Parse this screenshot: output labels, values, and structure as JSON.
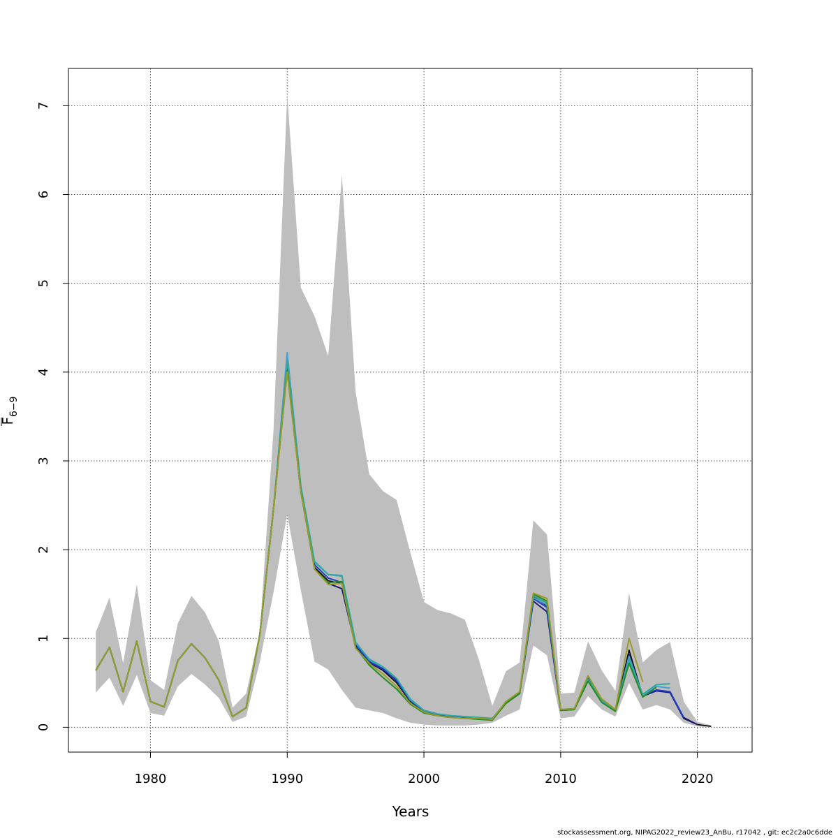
{
  "chart_data": {
    "type": "line",
    "xlabel": "Years",
    "ylabel_main": "F",
    "ylabel_sub": "6−9",
    "xlim": [
      1974,
      2024
    ],
    "ylim": [
      -0.28,
      7.42
    ],
    "xticks": [
      1980,
      1990,
      2000,
      2010,
      2020
    ],
    "yticks": [
      0,
      1,
      2,
      3,
      4,
      5,
      6,
      7
    ],
    "grid": true,
    "band": {
      "years": [
        1976,
        1977,
        1978,
        1979,
        1980,
        1981,
        1982,
        1983,
        1984,
        1985,
        1986,
        1987,
        1988,
        1989,
        1990,
        1991,
        1992,
        1993,
        1994,
        1995,
        1996,
        1997,
        1998,
        1999,
        2000,
        2001,
        2002,
        2003,
        2004,
        2005,
        2006,
        2007,
        2008,
        2009,
        2010,
        2011,
        2012,
        2013,
        2014,
        2015,
        2016,
        2017,
        2018,
        2019,
        2020,
        2021
      ],
      "upper": [
        1.07,
        1.46,
        0.72,
        1.61,
        0.53,
        0.42,
        1.17,
        1.48,
        1.29,
        0.97,
        0.22,
        0.38,
        1.08,
        3.35,
        7.13,
        4.95,
        4.63,
        4.18,
        6.22,
        3.78,
        2.85,
        2.66,
        2.56,
        1.97,
        1.41,
        1.32,
        1.28,
        1.21,
        0.77,
        0.24,
        0.63,
        0.73,
        2.33,
        2.17,
        0.38,
        0.39,
        0.97,
        0.64,
        0.41,
        1.51,
        0.73,
        0.87,
        0.96,
        0.29,
        0.06,
        0.02
      ],
      "lower": [
        0.39,
        0.56,
        0.24,
        0.59,
        0.16,
        0.13,
        0.46,
        0.6,
        0.48,
        0.33,
        0.06,
        0.12,
        0.74,
        1.52,
        2.4,
        1.54,
        0.74,
        0.65,
        0.42,
        0.22,
        0.19,
        0.16,
        0.1,
        0.05,
        0.03,
        0.02,
        0.02,
        0.02,
        0.03,
        0.05,
        0.13,
        0.2,
        0.92,
        0.81,
        0.1,
        0.12,
        0.35,
        0.2,
        0.12,
        0.5,
        0.2,
        0.25,
        0.2,
        0.05,
        0.01,
        0.0
      ]
    },
    "series": [
      {
        "color": "#000000",
        "x": [
          1976,
          1977,
          1978,
          1979,
          1980,
          1981,
          1982,
          1983,
          1984,
          1985,
          1986,
          1987,
          1988,
          1989,
          1990,
          1991,
          1992,
          1993,
          1994,
          1995,
          1996,
          1997,
          1998,
          1999,
          2000,
          2001,
          2002,
          2003,
          2004,
          2005,
          2006,
          2007,
          2008,
          2009,
          2010,
          2011,
          2012,
          2013,
          2014,
          2015,
          2016,
          2017,
          2018,
          2019,
          2020,
          2021
        ],
        "y": [
          0.64,
          0.9,
          0.4,
          0.97,
          0.29,
          0.23,
          0.75,
          0.94,
          0.78,
          0.53,
          0.12,
          0.22,
          1.05,
          2.46,
          4.1,
          2.68,
          1.8,
          1.65,
          1.62,
          0.92,
          0.73,
          0.64,
          0.5,
          0.29,
          0.18,
          0.14,
          0.12,
          0.11,
          0.1,
          0.09,
          0.27,
          0.38,
          1.47,
          1.37,
          0.2,
          0.2,
          0.55,
          0.3,
          0.19,
          0.87,
          0.35,
          0.41,
          0.4,
          0.11,
          0.03,
          0.01
        ]
      },
      {
        "color": "#191970",
        "x": [
          1976,
          1977,
          1978,
          1979,
          1980,
          1981,
          1982,
          1983,
          1984,
          1985,
          1986,
          1987,
          1988,
          1989,
          1990,
          1991,
          1992,
          1993,
          1994,
          1995,
          1996,
          1997,
          1998,
          1999,
          2000,
          2001,
          2002,
          2003,
          2004,
          2005,
          2006,
          2007,
          2008,
          2009,
          2010,
          2011,
          2012,
          2013,
          2014,
          2015,
          2016,
          2017,
          2018,
          2019,
          2020
        ],
        "y": [
          0.64,
          0.9,
          0.4,
          0.97,
          0.29,
          0.23,
          0.75,
          0.94,
          0.78,
          0.53,
          0.12,
          0.22,
          1.05,
          2.46,
          4.05,
          2.65,
          1.79,
          1.62,
          1.56,
          0.91,
          0.72,
          0.65,
          0.53,
          0.3,
          0.18,
          0.14,
          0.12,
          0.11,
          0.1,
          0.09,
          0.27,
          0.38,
          1.42,
          1.3,
          0.19,
          0.2,
          0.54,
          0.3,
          0.19,
          0.82,
          0.35,
          0.41,
          0.39,
          0.1,
          0.03
        ]
      },
      {
        "color": "#1e3cc8",
        "x": [
          1976,
          1977,
          1978,
          1979,
          1980,
          1981,
          1982,
          1983,
          1984,
          1985,
          1986,
          1987,
          1988,
          1989,
          1990,
          1991,
          1992,
          1993,
          1994,
          1995,
          1996,
          1997,
          1998,
          1999,
          2000,
          2001,
          2002,
          2003,
          2004,
          2005,
          2006,
          2007,
          2008,
          2009,
          2010,
          2011,
          2012,
          2013,
          2014,
          2015,
          2016,
          2017,
          2018,
          2019
        ],
        "y": [
          0.64,
          0.9,
          0.4,
          0.97,
          0.29,
          0.23,
          0.75,
          0.94,
          0.78,
          0.53,
          0.12,
          0.22,
          1.05,
          2.46,
          4.15,
          2.7,
          1.83,
          1.68,
          1.63,
          0.93,
          0.74,
          0.66,
          0.52,
          0.3,
          0.18,
          0.14,
          0.12,
          0.11,
          0.1,
          0.09,
          0.28,
          0.39,
          1.45,
          1.35,
          0.2,
          0.2,
          0.55,
          0.3,
          0.19,
          0.78,
          0.35,
          0.42,
          0.4,
          0.11
        ]
      },
      {
        "color": "#4aa0c8",
        "x": [
          1976,
          1977,
          1978,
          1979,
          1980,
          1981,
          1982,
          1983,
          1984,
          1985,
          1986,
          1987,
          1988,
          1989,
          1990,
          1991,
          1992,
          1993,
          1994,
          1995,
          1996,
          1997,
          1998,
          1999,
          2000,
          2001,
          2002,
          2003,
          2004,
          2005,
          2006,
          2007,
          2008,
          2009,
          2010,
          2011,
          2012,
          2013,
          2014,
          2015,
          2016,
          2017,
          2018
        ],
        "y": [
          0.64,
          0.9,
          0.4,
          0.97,
          0.29,
          0.23,
          0.75,
          0.94,
          0.78,
          0.53,
          0.12,
          0.22,
          1.05,
          2.46,
          4.22,
          2.72,
          1.86,
          1.72,
          1.7,
          0.95,
          0.77,
          0.68,
          0.55,
          0.32,
          0.19,
          0.15,
          0.13,
          0.12,
          0.11,
          0.1,
          0.28,
          0.39,
          1.46,
          1.38,
          0.2,
          0.21,
          0.54,
          0.3,
          0.19,
          0.8,
          0.36,
          0.46,
          0.44
        ]
      },
      {
        "color": "#30a8a0",
        "x": [
          1976,
          1977,
          1978,
          1979,
          1980,
          1981,
          1982,
          1983,
          1984,
          1985,
          1986,
          1987,
          1988,
          1989,
          1990,
          1991,
          1992,
          1993,
          1994,
          1995,
          1996,
          1997,
          1998,
          1999,
          2000,
          2001,
          2002,
          2003,
          2004,
          2005,
          2006,
          2007,
          2008,
          2009,
          2010,
          2011,
          2012,
          2013,
          2014,
          2015,
          2016,
          2017,
          2018
        ],
        "y": [
          0.64,
          0.9,
          0.4,
          0.97,
          0.29,
          0.23,
          0.75,
          0.94,
          0.78,
          0.53,
          0.12,
          0.22,
          1.05,
          2.46,
          4.12,
          2.7,
          1.87,
          1.72,
          1.71,
          0.96,
          0.76,
          0.68,
          0.55,
          0.31,
          0.19,
          0.15,
          0.13,
          0.12,
          0.11,
          0.1,
          0.28,
          0.39,
          1.48,
          1.4,
          0.2,
          0.21,
          0.54,
          0.31,
          0.2,
          0.76,
          0.37,
          0.48,
          0.49
        ]
      },
      {
        "color": "#228b22",
        "x": [
          1976,
          1977,
          1978,
          1979,
          1980,
          1981,
          1982,
          1983,
          1984,
          1985,
          1986,
          1987,
          1988,
          1989,
          1990,
          1991,
          1992,
          1993,
          1994,
          1995,
          1996,
          1997,
          1998,
          1999,
          2000,
          2001,
          2002,
          2003,
          2004,
          2005,
          2006,
          2007,
          2008,
          2009,
          2010,
          2011,
          2012,
          2013,
          2014,
          2015,
          2016,
          2017
        ],
        "y": [
          0.64,
          0.9,
          0.4,
          0.97,
          0.29,
          0.23,
          0.75,
          0.94,
          0.78,
          0.53,
          0.12,
          0.22,
          1.05,
          2.46,
          4.02,
          2.66,
          1.78,
          1.63,
          1.64,
          0.9,
          0.7,
          0.56,
          0.43,
          0.26,
          0.16,
          0.13,
          0.11,
          0.1,
          0.09,
          0.08,
          0.27,
          0.38,
          1.5,
          1.42,
          0.19,
          0.2,
          0.52,
          0.28,
          0.18,
          0.72,
          0.34,
          0.45
        ]
      },
      {
        "color": "#9a9a2a",
        "x": [
          1976,
          1977,
          1978,
          1979,
          1980,
          1981,
          1982,
          1983,
          1984,
          1985,
          1986,
          1987,
          1988,
          1989,
          1990,
          1991,
          1992,
          1993,
          1994,
          1995,
          1996,
          1997,
          1998,
          1999,
          2000,
          2001,
          2002,
          2003,
          2004,
          2005,
          2006,
          2007,
          2008,
          2009,
          2010,
          2011,
          2012,
          2013,
          2014,
          2015,
          2016
        ],
        "y": [
          0.64,
          0.9,
          0.4,
          0.97,
          0.29,
          0.23,
          0.75,
          0.94,
          0.78,
          0.53,
          0.12,
          0.22,
          1.05,
          2.46,
          4.0,
          2.65,
          1.78,
          1.61,
          1.62,
          0.89,
          0.72,
          0.6,
          0.46,
          0.27,
          0.17,
          0.13,
          0.11,
          0.1,
          0.1,
          0.09,
          0.29,
          0.4,
          1.51,
          1.45,
          0.2,
          0.21,
          0.58,
          0.32,
          0.2,
          1.0,
          0.51
        ]
      }
    ]
  },
  "footer": "stockassessment.org, NIPAG2022_review23_AnBu, r17042 , git: ec2c2a0c6dde"
}
